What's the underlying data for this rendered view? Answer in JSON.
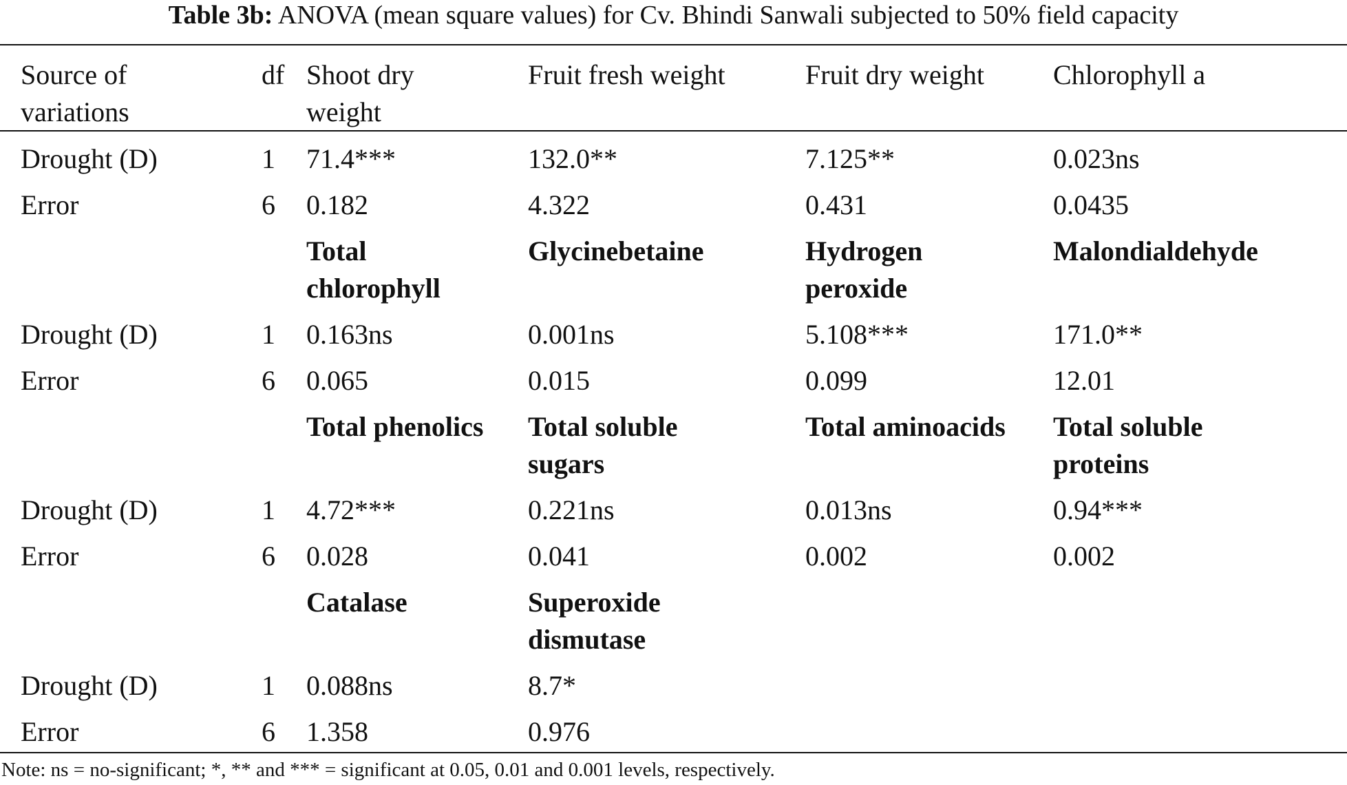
{
  "caption": {
    "label": "Table 3b:",
    "text": "ANOVA (mean square values) for Cv. Bhindi Sanwali subjected to 50% field capacity"
  },
  "header": {
    "source_line1": "Source of",
    "source_line2": "variations",
    "df": "df",
    "col1_line1": "Shoot dry",
    "col1_line2": "weight",
    "col2": "Fruit fresh weight",
    "col3": "Fruit dry weight",
    "col4": "Chlorophyll a"
  },
  "block1": {
    "rows": [
      {
        "source": "Drought (D)",
        "df": "1",
        "v1": "71.4***",
        "v2": "132.0**",
        "v3": "7.125**",
        "v4": "0.023ns"
      },
      {
        "source": "Error",
        "df": "6",
        "v1": "0.182",
        "v2": "4.322",
        "v3": "0.431",
        "v4": "0.0435"
      }
    ]
  },
  "block2": {
    "headers": {
      "h1_line1": "Total",
      "h1_line2": "chlorophyll",
      "h2_line1": "Glycinebetaine",
      "h3_line1": "Hydrogen",
      "h3_line2": "peroxide",
      "h4_line1": "Malondialdehyde"
    },
    "rows": [
      {
        "source": "Drought (D)",
        "df": "1",
        "v1": "0.163ns",
        "v2": "0.001ns",
        "v3": "5.108***",
        "v4": "171.0**"
      },
      {
        "source": "Error",
        "df": "6",
        "v1": "0.065",
        "v2": "0.015",
        "v3": "0.099",
        "v4": "12.01"
      }
    ]
  },
  "block3": {
    "headers": {
      "h1_line1": "Total phenolics",
      "h2_line1": "Total soluble",
      "h2_line2": "sugars",
      "h3_line1": "Total aminoacids",
      "h4_line1": "Total soluble",
      "h4_line2": "proteins"
    },
    "rows": [
      {
        "source": "Drought (D)",
        "df": "1",
        "v1": "4.72***",
        "v2": "0.221ns",
        "v3": "0.013ns",
        "v4": "0.94***"
      },
      {
        "source": "Error",
        "df": "6",
        "v1": "0.028",
        "v2": "0.041",
        "v3": "0.002",
        "v4": "0.002"
      }
    ]
  },
  "block4": {
    "headers": {
      "h1_line1": "Catalase",
      "h2_line1": "Superoxide",
      "h2_line2": "dismutase"
    },
    "rows": [
      {
        "source": "Drought (D)",
        "df": "1",
        "v1": "0.088ns",
        "v2": "8.7*"
      },
      {
        "source": "Error",
        "df": "6",
        "v1": "1.358",
        "v2": "0.976"
      }
    ]
  },
  "note": "Note: ns = no-significant; *, ** and *** = significant at 0.05, 0.01 and 0.001 levels, respectively."
}
